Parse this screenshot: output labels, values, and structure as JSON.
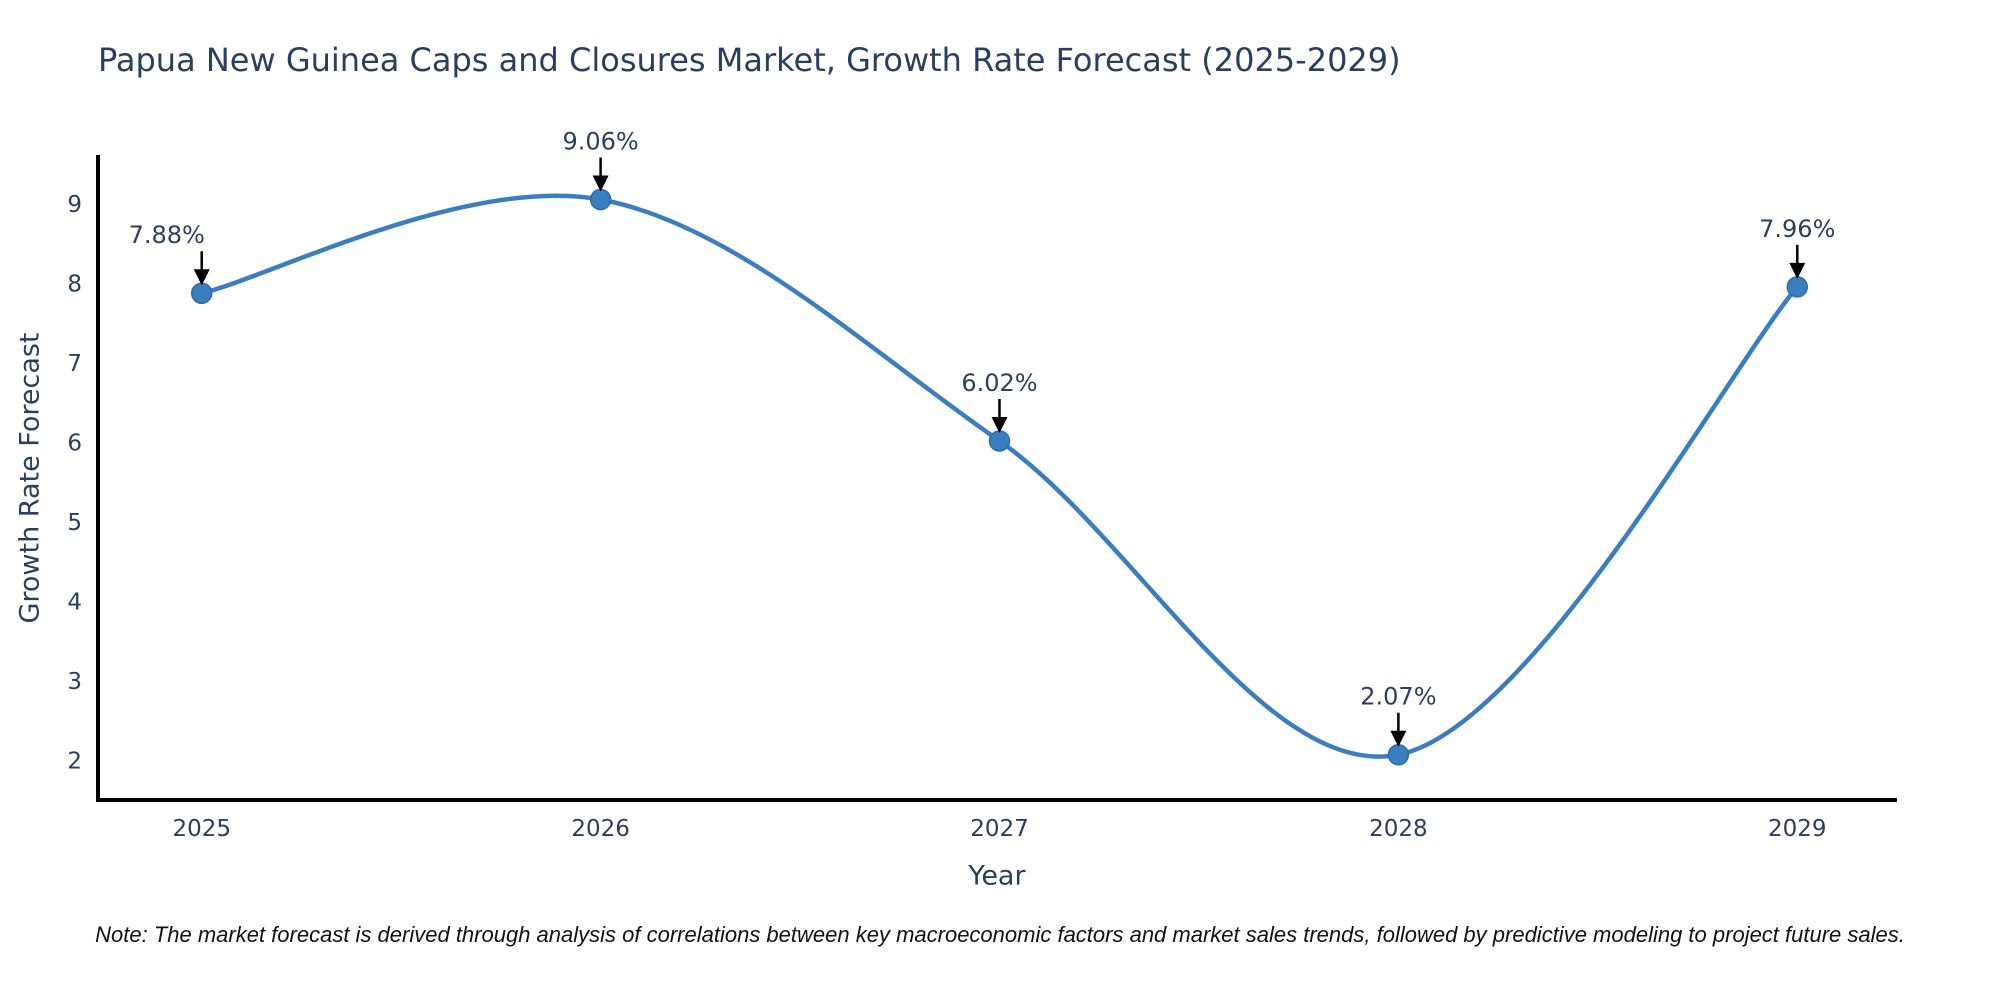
{
  "title": "Papua New Guinea Caps and Closures Market, Growth Rate Forecast (2025-2029)",
  "note": "Note: The market forecast is derived through analysis of correlations between key macroeconomic factors and market sales trends, followed by predictive modeling to project future sales.",
  "colors": {
    "background": "#ffffff",
    "line": "#3a7ebf",
    "marker_fill": "#3a7ebf",
    "marker_edge": "#2e6da4",
    "axis": "#000000",
    "text": "#2a3f5f",
    "annotation_arrow": "#000000",
    "note_text": "#111111"
  },
  "chart_data": {
    "type": "line",
    "title": "Papua New Guinea Caps and Closures Market, Growth Rate Forecast (2025-2029)",
    "xlabel": "Year",
    "ylabel": "Growth Rate Forecast",
    "x": [
      2025,
      2026,
      2027,
      2028,
      2029
    ],
    "values": [
      7.88,
      9.06,
      6.02,
      2.07,
      7.96
    ],
    "series": [
      {
        "name": "Growth Rate Forecast",
        "values": [
          7.88,
          9.06,
          6.02,
          2.07,
          7.96
        ]
      }
    ],
    "point_labels": [
      "7.88%",
      "9.06%",
      "6.02%",
      "2.07%",
      "7.96%"
    ],
    "x_tick_labels": [
      "2025",
      "2026",
      "2027",
      "2028",
      "2029"
    ],
    "y_ticks": [
      2,
      3,
      4,
      5,
      6,
      7,
      8,
      9
    ],
    "xlim": [
      2024.74,
      2029.25
    ],
    "ylim": [
      1.5,
      9.62
    ],
    "line_shape": "spline",
    "grid": false,
    "legend_position": "none",
    "annotations_have_arrows": true
  }
}
